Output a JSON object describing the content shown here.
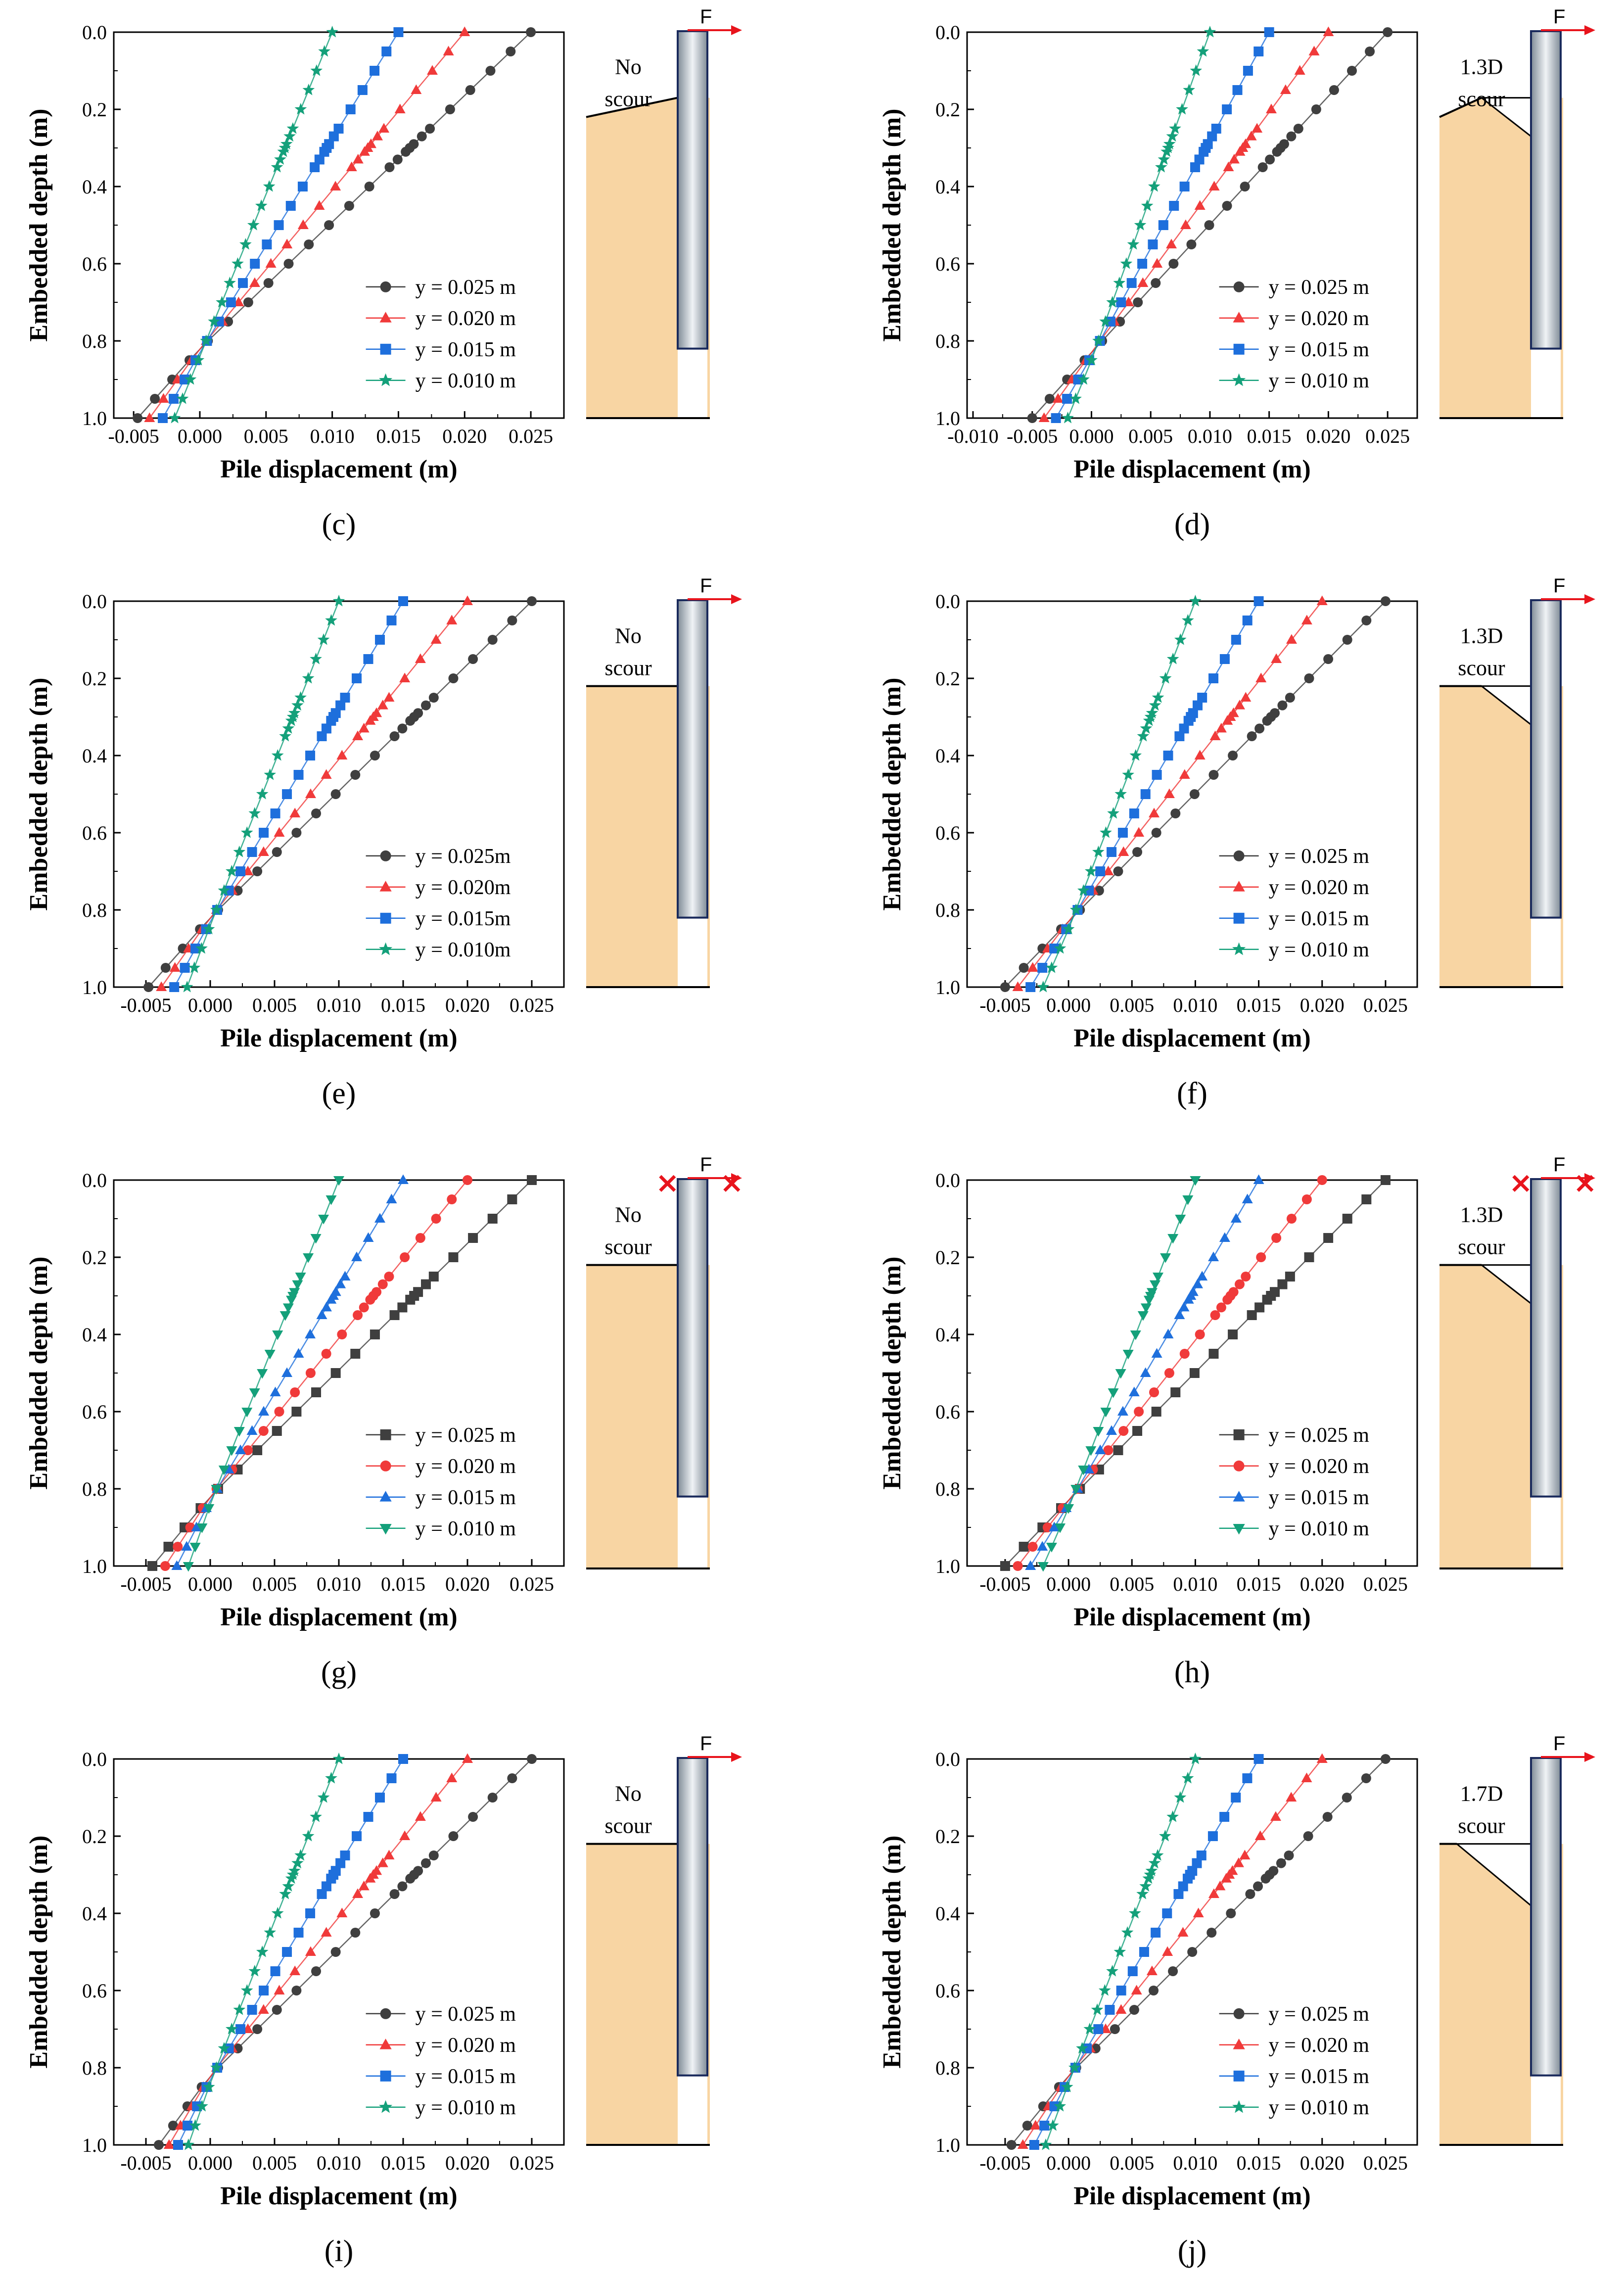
{
  "figure": {
    "xlabel": "Pile displacement (m)",
    "ylabel": "Embedded depth (m)",
    "force_label": "F",
    "fixed_mark": "×"
  },
  "colors": {
    "y025": "#3f3f3f",
    "y020": "#f03a3a",
    "y015": "#1e6fdc",
    "y010": "#14a07a",
    "soil": "#f8d5a3",
    "pile_dark": "#7f8b96",
    "pile_light": "#f0f3f6",
    "force": "#e8141c"
  },
  "chart_data": [
    {
      "panel": "c",
      "type": "line",
      "xlabel": "Pile displacement (m)",
      "ylabel": "Embedded depth (m)",
      "xlim": [
        -0.0065,
        0.0275
      ],
      "ylim": [
        0.0,
        1.0
      ],
      "x_ticks": [
        "-0.005",
        "0.000",
        "0.005",
        "0.010",
        "0.015",
        "0.020",
        "0.025"
      ],
      "y_ticks": [
        "0.0",
        "0.2",
        "0.4",
        "0.6",
        "0.8",
        "1.0"
      ],
      "legend_position": "bottom-right",
      "scour": {
        "label": [
          "No",
          "scour"
        ],
        "depth": "none"
      },
      "restrained_top": false,
      "series": [
        {
          "name": "y = 0.025 m",
          "marker": "circle",
          "color": "#3f3f3f",
          "top": 0.025,
          "bottom": -0.0047,
          "pivot": 0.82
        },
        {
          "name": "y = 0.020 m",
          "marker": "triangle",
          "color": "#f03a3a",
          "top": 0.02,
          "bottom": -0.0038,
          "pivot": 0.82
        },
        {
          "name": "y = 0.015 m",
          "marker": "square",
          "color": "#1e6fdc",
          "top": 0.015,
          "bottom": -0.0028,
          "pivot": 0.83
        },
        {
          "name": "y = 0.010 m",
          "marker": "star",
          "color": "#14a07a",
          "top": 0.01,
          "bottom": -0.0019,
          "pivot": 0.84
        }
      ],
      "label": "(c)"
    },
    {
      "panel": "d",
      "type": "line",
      "xlabel": "Pile displacement (m)",
      "ylabel": "Embedded depth (m)",
      "xlim": [
        -0.0105,
        0.0275
      ],
      "ylim": [
        0.0,
        1.0
      ],
      "x_ticks": [
        "-0.010",
        "-0.005",
        "0.000",
        "0.005",
        "0.010",
        "0.015",
        "0.020",
        "0.025"
      ],
      "y_ticks": [
        "0.0",
        "0.2",
        "0.4",
        "0.6",
        "0.8",
        "1.0"
      ],
      "legend_position": "bottom-right",
      "scour": {
        "label": [
          "1.3D",
          "scour"
        ],
        "depth": "1.3D"
      },
      "restrained_top": false,
      "series": [
        {
          "name": "y = 0.025 m",
          "marker": "circle",
          "color": "#3f3f3f",
          "top": 0.025,
          "bottom": -0.005,
          "pivot": 0.83
        },
        {
          "name": "y = 0.020 m",
          "marker": "triangle",
          "color": "#f03a3a",
          "top": 0.02,
          "bottom": -0.004,
          "pivot": 0.83
        },
        {
          "name": "y = 0.015 m",
          "marker": "square",
          "color": "#1e6fdc",
          "top": 0.015,
          "bottom": -0.003,
          "pivot": 0.84
        },
        {
          "name": "y = 0.010 m",
          "marker": "star",
          "color": "#14a07a",
          "top": 0.01,
          "bottom": -0.002,
          "pivot": 0.85
        }
      ],
      "label": "(d)"
    },
    {
      "panel": "e",
      "type": "line",
      "xlabel": "Pile displacement (m)",
      "ylabel": "Embedded depth (m)",
      "xlim": [
        -0.0075,
        0.0275
      ],
      "ylim": [
        0.0,
        1.0
      ],
      "x_ticks": [
        "-0.005",
        "0.000",
        "0.005",
        "0.010",
        "0.015",
        "0.020",
        "0.025"
      ],
      "y_ticks": [
        "0.0",
        "0.2",
        "0.4",
        "0.6",
        "0.8",
        "1.0"
      ],
      "legend_position": "bottom-right",
      "scour": {
        "label": [
          "No",
          "scour"
        ],
        "depth": "none"
      },
      "restrained_top": false,
      "series": [
        {
          "name": "y = 0.025m",
          "marker": "circle",
          "color": "#3f3f3f",
          "top": 0.025,
          "bottom": -0.0048,
          "pivot": 0.82
        },
        {
          "name": "y = 0.020m",
          "marker": "triangle",
          "color": "#f03a3a",
          "top": 0.02,
          "bottom": -0.0038,
          "pivot": 0.82
        },
        {
          "name": "y = 0.015m",
          "marker": "square",
          "color": "#1e6fdc",
          "top": 0.015,
          "bottom": -0.0028,
          "pivot": 0.83
        },
        {
          "name": "y = 0.010m",
          "marker": "star",
          "color": "#14a07a",
          "top": 0.01,
          "bottom": -0.0018,
          "pivot": 0.84
        }
      ],
      "label": "(e)"
    },
    {
      "panel": "f",
      "type": "line",
      "xlabel": "Pile displacement (m)",
      "ylabel": "Embedded depth (m)",
      "xlim": [
        -0.008,
        0.0275
      ],
      "ylim": [
        0.0,
        1.0
      ],
      "x_ticks": [
        "-0.005",
        "0.000",
        "0.005",
        "0.010",
        "0.015",
        "0.020",
        "0.025"
      ],
      "y_ticks": [
        "0.0",
        "0.2",
        "0.4",
        "0.6",
        "0.8",
        "1.0"
      ],
      "legend_position": "bottom-right",
      "scour": {
        "label": [
          "1.3D",
          "scour"
        ],
        "depth": "1.3D"
      },
      "restrained_top": false,
      "series": [
        {
          "name": "y = 0.025 m",
          "marker": "circle",
          "color": "#3f3f3f",
          "top": 0.025,
          "bottom": -0.005,
          "pivot": 0.83
        },
        {
          "name": "y = 0.020 m",
          "marker": "triangle",
          "color": "#f03a3a",
          "top": 0.02,
          "bottom": -0.004,
          "pivot": 0.83
        },
        {
          "name": "y = 0.015 m",
          "marker": "square",
          "color": "#1e6fdc",
          "top": 0.015,
          "bottom": -0.003,
          "pivot": 0.84
        },
        {
          "name": "y = 0.010 m",
          "marker": "star",
          "color": "#14a07a",
          "top": 0.01,
          "bottom": -0.002,
          "pivot": 0.85
        }
      ],
      "label": "(f)"
    },
    {
      "panel": "g",
      "type": "line",
      "xlabel": "Pile displacement (m)",
      "ylabel": "Embedded depth (m)",
      "xlim": [
        -0.0075,
        0.0275
      ],
      "ylim": [
        0.0,
        1.0
      ],
      "x_ticks": [
        "-0.005",
        "0.000",
        "0.005",
        "0.010",
        "0.015",
        "0.020",
        "0.025"
      ],
      "y_ticks": [
        "0.0",
        "0.2",
        "0.4",
        "0.6",
        "0.8",
        "1.0"
      ],
      "legend_position": "bottom-right",
      "scour": {
        "label": [
          "No",
          "scour"
        ],
        "depth": "none"
      },
      "restrained_top": true,
      "series": [
        {
          "name": "y = 0.025 m",
          "marker": "square",
          "color": "#3f3f3f",
          "top": 0.025,
          "bottom": -0.0045,
          "pivot": 0.82
        },
        {
          "name": "y = 0.020 m",
          "marker": "circle",
          "color": "#f03a3a",
          "top": 0.02,
          "bottom": -0.0035,
          "pivot": 0.82
        },
        {
          "name": "y = 0.015 m",
          "marker": "triangle",
          "color": "#1e6fdc",
          "top": 0.015,
          "bottom": -0.0026,
          "pivot": 0.83
        },
        {
          "name": "y = 0.010 m",
          "marker": "triangle-down",
          "color": "#14a07a",
          "top": 0.01,
          "bottom": -0.0017,
          "pivot": 0.84
        }
      ],
      "label": "(g)"
    },
    {
      "panel": "h",
      "type": "line",
      "xlabel": "Pile displacement (m)",
      "ylabel": "Embedded depth (m)",
      "xlim": [
        -0.008,
        0.0275
      ],
      "ylim": [
        0.0,
        1.0
      ],
      "x_ticks": [
        "-0.005",
        "0.000",
        "0.005",
        "0.010",
        "0.015",
        "0.020",
        "0.025"
      ],
      "y_ticks": [
        "0.0",
        "0.2",
        "0.4",
        "0.6",
        "0.8",
        "1.0"
      ],
      "legend_position": "bottom-right",
      "scour": {
        "label": [
          "1.3D",
          "scour"
        ],
        "depth": "1.3D"
      },
      "restrained_top": true,
      "series": [
        {
          "name": "y = 0.025 m",
          "marker": "square",
          "color": "#3f3f3f",
          "top": 0.025,
          "bottom": -0.005,
          "pivot": 0.83
        },
        {
          "name": "y = 0.020 m",
          "marker": "circle",
          "color": "#f03a3a",
          "top": 0.02,
          "bottom": -0.004,
          "pivot": 0.83
        },
        {
          "name": "y = 0.015 m",
          "marker": "triangle",
          "color": "#1e6fdc",
          "top": 0.015,
          "bottom": -0.003,
          "pivot": 0.84
        },
        {
          "name": "y = 0.010 m",
          "marker": "triangle-down",
          "color": "#14a07a",
          "top": 0.01,
          "bottom": -0.002,
          "pivot": 0.85
        }
      ],
      "label": "(h)"
    },
    {
      "panel": "i",
      "type": "line",
      "xlabel": "Pile displacement (m)",
      "ylabel": "Embedded depth (m)",
      "xlim": [
        -0.0075,
        0.0275
      ],
      "ylim": [
        0.0,
        1.0
      ],
      "x_ticks": [
        "-0.005",
        "0.000",
        "0.005",
        "0.010",
        "0.015",
        "0.020",
        "0.025"
      ],
      "y_ticks": [
        "0.0",
        "0.2",
        "0.4",
        "0.6",
        "0.8",
        "1.0"
      ],
      "legend_position": "bottom-right",
      "scour": {
        "label": [
          "No",
          "scour"
        ],
        "depth": "none"
      },
      "restrained_top": false,
      "series": [
        {
          "name": "y = 0.025 m",
          "marker": "circle",
          "color": "#3f3f3f",
          "top": 0.025,
          "bottom": -0.004,
          "pivot": 0.82
        },
        {
          "name": "y = 0.020 m",
          "marker": "triangle",
          "color": "#f03a3a",
          "top": 0.02,
          "bottom": -0.0032,
          "pivot": 0.82
        },
        {
          "name": "y = 0.015 m",
          "marker": "square",
          "color": "#1e6fdc",
          "top": 0.015,
          "bottom": -0.0025,
          "pivot": 0.83
        },
        {
          "name": "y = 0.010 m",
          "marker": "star",
          "color": "#14a07a",
          "top": 0.01,
          "bottom": -0.0017,
          "pivot": 0.84
        }
      ],
      "label": "(i)"
    },
    {
      "panel": "j",
      "type": "line",
      "xlabel": "Pile displacement (m)",
      "ylabel": "Embedded depth (m)",
      "xlim": [
        -0.008,
        0.0275
      ],
      "ylim": [
        0.0,
        1.0
      ],
      "x_ticks": [
        "-0.005",
        "0.000",
        "0.005",
        "0.010",
        "0.015",
        "0.020",
        "0.025"
      ],
      "y_ticks": [
        "0.0",
        "0.2",
        "0.4",
        "0.6",
        "0.8",
        "1.0"
      ],
      "legend_position": "bottom-right",
      "scour": {
        "label": [
          "1.7D",
          "scour"
        ],
        "depth": "1.7D"
      },
      "restrained_top": false,
      "series": [
        {
          "name": "y = 0.025 m",
          "marker": "circle",
          "color": "#3f3f3f",
          "top": 0.025,
          "bottom": -0.0045,
          "pivot": 0.82
        },
        {
          "name": "y = 0.020 m",
          "marker": "triangle",
          "color": "#f03a3a",
          "top": 0.02,
          "bottom": -0.0036,
          "pivot": 0.82
        },
        {
          "name": "y = 0.015 m",
          "marker": "square",
          "color": "#1e6fdc",
          "top": 0.015,
          "bottom": -0.0027,
          "pivot": 0.83
        },
        {
          "name": "y = 0.010 m",
          "marker": "star",
          "color": "#14a07a",
          "top": 0.01,
          "bottom": -0.0018,
          "pivot": 0.84
        }
      ],
      "label": "(j)"
    }
  ]
}
